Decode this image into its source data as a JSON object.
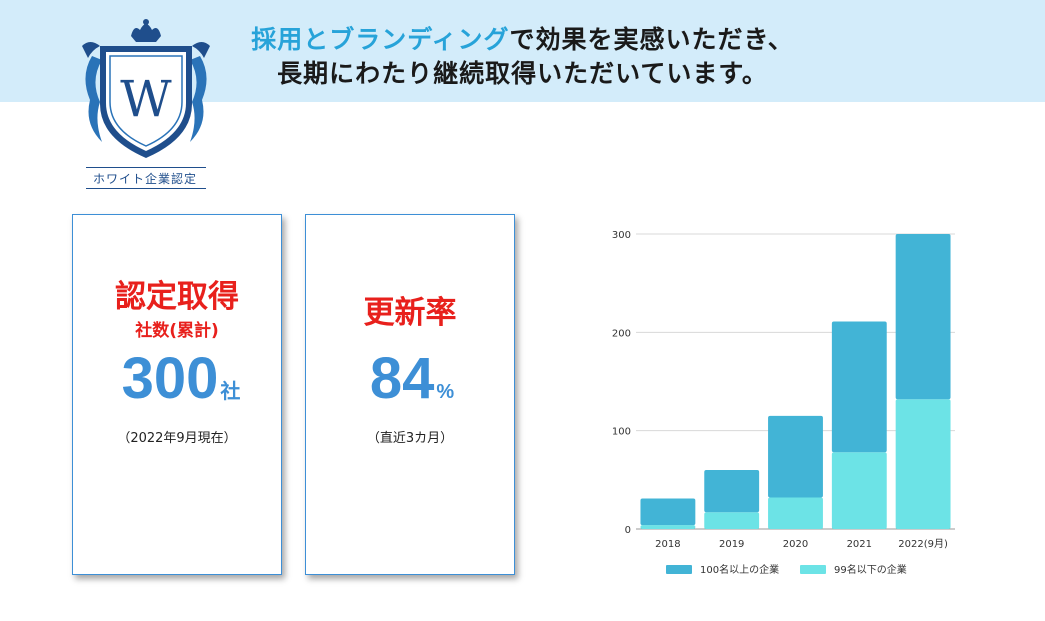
{
  "header": {
    "line1_accent": "採用とブランディング",
    "line1_rest": "で効果を実感いただき、",
    "line2": "長期にわたり継続取得いただいています。"
  },
  "logo": {
    "letter": "W",
    "caption": "ホワイト企業認定"
  },
  "cards": [
    {
      "title": "認定取得",
      "subtitle": "社数(累計)",
      "value": "300",
      "unit": "社",
      "note": "（2022年9月現在）"
    },
    {
      "title": "更新率",
      "subtitle": "",
      "value": "84",
      "unit": "%",
      "note": "（直近3カ月）"
    }
  ],
  "colors": {
    "accent": "#27a3d9",
    "title_red": "#e8201c",
    "number_blue": "#3d8fd6",
    "band": "#d3ecfa",
    "series_large": "#42b4d6",
    "series_small": "#6ce3e6"
  },
  "chart_data": {
    "type": "bar",
    "stacked": true,
    "categories": [
      "2018",
      "2019",
      "2020",
      "2021",
      "2022(9月)"
    ],
    "series": [
      {
        "name": "99名以下の企業",
        "values": [
          4,
          17,
          32,
          78,
          132
        ],
        "color": "#6ce3e6"
      },
      {
        "name": "100名以上の企業",
        "values": [
          27,
          43,
          83,
          133,
          168
        ],
        "color": "#42b4d6"
      }
    ],
    "yticks": [
      0,
      100,
      200,
      300
    ],
    "ylim": [
      0,
      300
    ],
    "grid": true,
    "legend_order": [
      "100名以上の企業",
      "99名以下の企業"
    ],
    "legend": "bottom"
  }
}
